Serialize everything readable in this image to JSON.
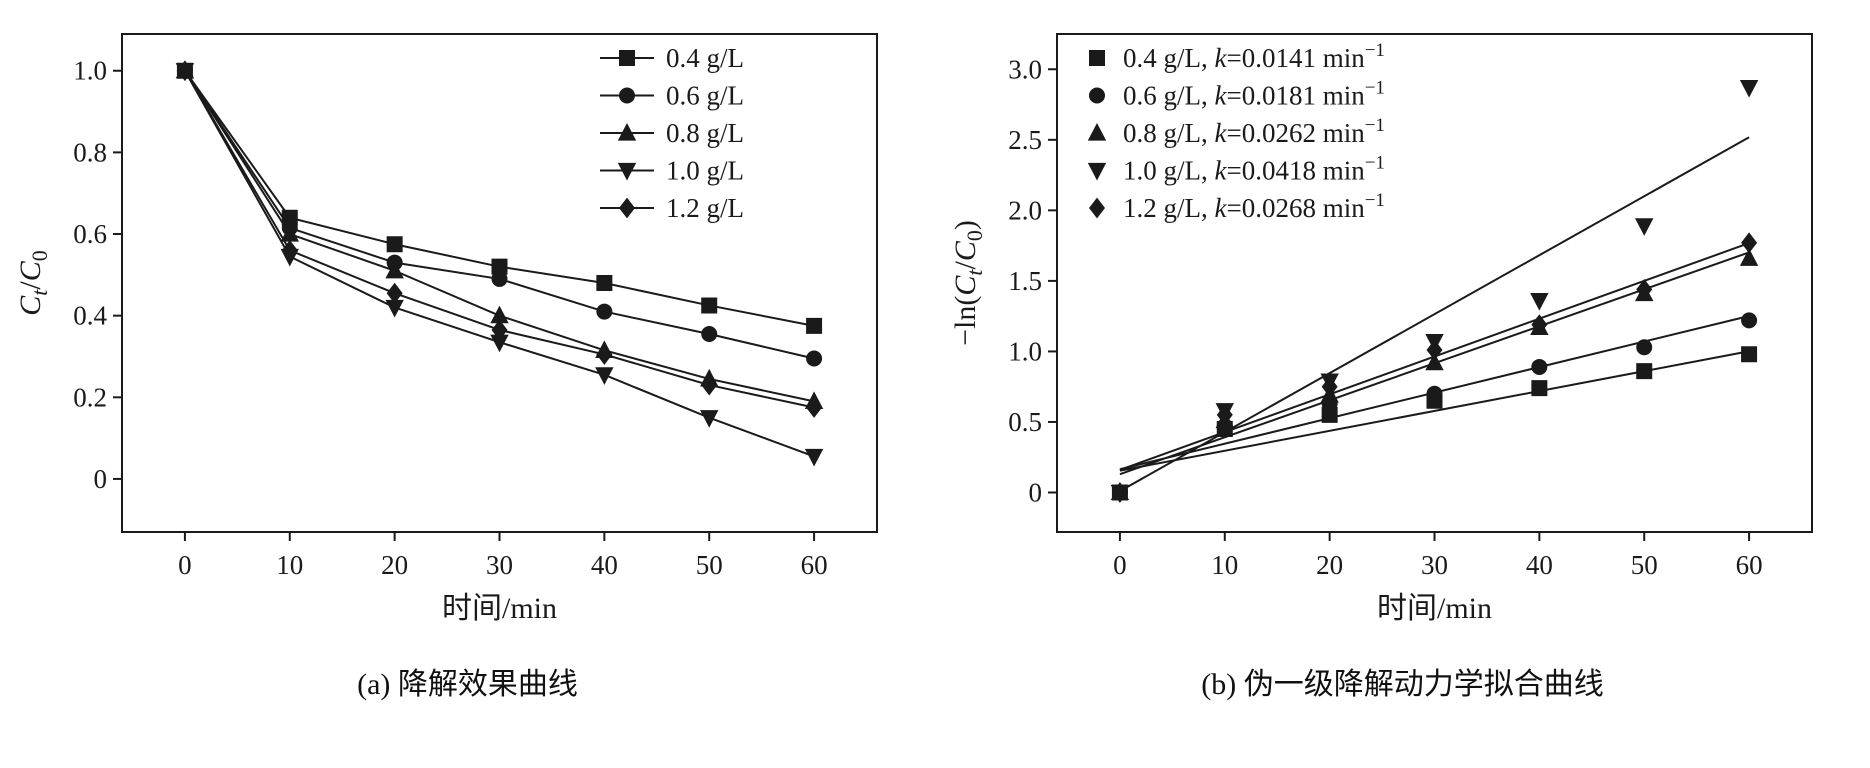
{
  "page": {
    "background": "#ffffff",
    "ink": "#1a1a1a"
  },
  "chart_data": [
    {
      "type": "line",
      "caption": "(a) 降解效果曲线",
      "xlabel": "时间/min",
      "ylabel_parts": [
        {
          "t": "C",
          "i": 1
        },
        {
          "t": "t",
          "i": 1,
          "sub": 1
        },
        {
          "t": "/"
        },
        {
          "t": "C",
          "i": 1
        },
        {
          "t": "0",
          "sub": 1
        }
      ],
      "x": [
        0,
        10,
        20,
        30,
        40,
        50,
        60
      ],
      "xlim": [
        -6,
        66
      ],
      "ylim": [
        -0.13,
        1.09
      ],
      "xticks": [
        0,
        10,
        20,
        30,
        40,
        50,
        60
      ],
      "yticks": [
        0,
        0.2,
        0.4,
        0.6,
        0.8,
        1.0
      ],
      "grid": false,
      "connect": true,
      "legend": {
        "position": "top-right",
        "show_line": true,
        "show_k": false
      },
      "series": [
        {
          "name": "0.4 g/L",
          "marker": "square",
          "values": [
            1.0,
            0.64,
            0.575,
            0.52,
            0.48,
            0.425,
            0.375
          ]
        },
        {
          "name": "0.6 g/L",
          "marker": "circle",
          "values": [
            1.0,
            0.615,
            0.53,
            0.49,
            0.41,
            0.355,
            0.295
          ]
        },
        {
          "name": "0.8 g/L",
          "marker": "triangle-up",
          "values": [
            1.0,
            0.6,
            0.51,
            0.4,
            0.315,
            0.245,
            0.19
          ]
        },
        {
          "name": "1.0 g/L",
          "marker": "triangle-down",
          "values": [
            1.0,
            0.545,
            0.42,
            0.335,
            0.255,
            0.15,
            0.055
          ]
        },
        {
          "name": "1.2 g/L",
          "marker": "diamond",
          "values": [
            1.0,
            0.56,
            0.455,
            0.365,
            0.305,
            0.23,
            0.175
          ]
        }
      ]
    },
    {
      "type": "scatter",
      "caption": "(b) 伪一级降解动力学拟合曲线",
      "xlabel": "时间/min",
      "ylabel_parts": [
        {
          "t": "−ln("
        },
        {
          "t": "C",
          "i": 1
        },
        {
          "t": "t",
          "i": 1,
          "sub": 1
        },
        {
          "t": "/"
        },
        {
          "t": "C",
          "i": 1
        },
        {
          "t": "0",
          "sub": 1
        },
        {
          "t": ")"
        }
      ],
      "x": [
        0,
        10,
        20,
        30,
        40,
        50,
        60
      ],
      "xlim": [
        -6,
        66
      ],
      "ylim": [
        -0.28,
        3.25
      ],
      "xticks": [
        0,
        10,
        20,
        30,
        40,
        50,
        60
      ],
      "yticks": [
        0,
        0.5,
        1.0,
        1.5,
        2.0,
        2.5,
        3.0
      ],
      "grid": false,
      "connect": false,
      "legend": {
        "position": "top-left",
        "show_line": false,
        "show_k": true
      },
      "k_unit_prefix": " min",
      "k_unit_sup": "−1",
      "series": [
        {
          "name": "0.4 g/L",
          "marker": "square",
          "k": "0.0141",
          "fit": {
            "slope": 0.0141,
            "intercept": 0.155
          },
          "values": [
            0,
            0.45,
            0.55,
            0.65,
            0.74,
            0.86,
            0.98
          ]
        },
        {
          "name": "0.6 g/L",
          "marker": "circle",
          "k": "0.0181",
          "fit": {
            "slope": 0.0181,
            "intercept": 0.165
          },
          "values": [
            0,
            0.47,
            0.63,
            0.7,
            0.89,
            1.03,
            1.22
          ]
        },
        {
          "name": "0.8 g/L",
          "marker": "triangle-up",
          "k": "0.0262",
          "fit": {
            "slope": 0.0262,
            "intercept": 0.13
          },
          "values": [
            0,
            0.51,
            0.69,
            0.92,
            1.17,
            1.41,
            1.66
          ]
        },
        {
          "name": "1.0 g/L",
          "marker": "triangle-down",
          "k": "0.0418",
          "fit": {
            "slope": 0.0418,
            "intercept": 0.01
          },
          "values": [
            0,
            0.58,
            0.79,
            1.07,
            1.36,
            1.89,
            2.87
          ]
        },
        {
          "name": "1.2 g/L",
          "marker": "diamond",
          "k": "0.0268",
          "fit": {
            "slope": 0.0268,
            "intercept": 0.16
          },
          "values": [
            0,
            0.55,
            0.75,
            1.01,
            1.19,
            1.44,
            1.77
          ]
        }
      ]
    }
  ]
}
